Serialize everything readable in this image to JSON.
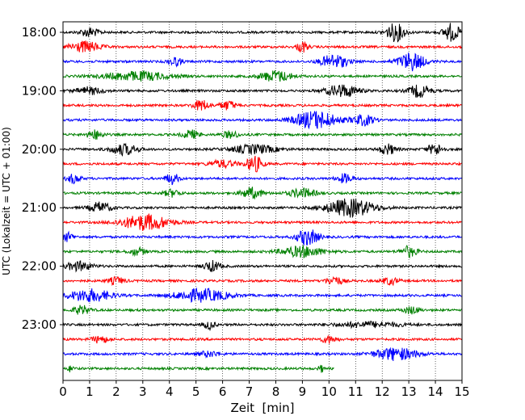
{
  "chart_data": {
    "type": "line",
    "title": "",
    "xlabel": "Zeit  [min]",
    "ylabel": "UTC (Lokalzeit = UTC + 01:00)",
    "xlim": [
      0,
      15
    ],
    "x_ticks": [
      "0",
      "1",
      "2",
      "3",
      "4",
      "5",
      "6",
      "7",
      "8",
      "9",
      "10",
      "11",
      "12",
      "13",
      "14",
      "15"
    ],
    "y_ticks": [
      {
        "label": "18:00",
        "row": 0
      },
      {
        "label": "19:00",
        "row": 4
      },
      {
        "label": "20:00",
        "row": 8
      },
      {
        "label": "21:00",
        "row": 12
      },
      {
        "label": "22:00",
        "row": 16
      },
      {
        "label": "23:00",
        "row": 20
      }
    ],
    "grid": "vertical-dotted",
    "row_colors": [
      "#000000",
      "#ff0000",
      "#0000ff",
      "#008000"
    ],
    "rows": [
      {
        "start": "18:00",
        "end_min": 15,
        "bursts": [
          [
            1.0,
            0.5,
            0.35
          ],
          [
            12.5,
            1.0,
            0.35
          ],
          [
            14.6,
            1.0,
            0.3
          ]
        ]
      },
      {
        "start": "18:15",
        "end_min": 15,
        "bursts": [
          [
            0.8,
            0.6,
            0.6
          ],
          [
            9.0,
            0.6,
            0.2
          ]
        ]
      },
      {
        "start": "18:30",
        "end_min": 15,
        "bursts": [
          [
            4.2,
            0.5,
            0.25
          ],
          [
            10.2,
            0.8,
            0.5
          ],
          [
            13.1,
            1.0,
            0.5
          ]
        ]
      },
      {
        "start": "18:45",
        "end_min": 15,
        "bursts": [
          [
            2.8,
            0.5,
            1.2
          ],
          [
            8.0,
            0.6,
            0.6
          ]
        ]
      },
      {
        "start": "19:00",
        "end_min": 15,
        "bursts": [
          [
            1.0,
            0.4,
            0.5
          ],
          [
            10.5,
            0.7,
            0.6
          ],
          [
            13.4,
            0.7,
            0.4
          ]
        ]
      },
      {
        "start": "19:15",
        "end_min": 15,
        "bursts": [
          [
            5.2,
            0.6,
            0.3
          ],
          [
            6.2,
            0.5,
            0.3
          ]
        ]
      },
      {
        "start": "19:30",
        "end_min": 15,
        "bursts": [
          [
            9.5,
            1.0,
            0.8
          ],
          [
            11.3,
            0.6,
            0.4
          ]
        ]
      },
      {
        "start": "19:45",
        "end_min": 15,
        "bursts": [
          [
            1.2,
            0.5,
            0.3
          ],
          [
            4.8,
            0.5,
            0.3
          ],
          [
            6.3,
            0.4,
            0.3
          ]
        ]
      },
      {
        "start": "20:00",
        "end_min": 15,
        "bursts": [
          [
            2.3,
            0.6,
            0.5
          ],
          [
            7.2,
            0.5,
            0.8
          ],
          [
            12.2,
            0.6,
            0.3
          ],
          [
            14.0,
            0.6,
            0.3
          ]
        ]
      },
      {
        "start": "20:15",
        "end_min": 15,
        "bursts": [
          [
            6.0,
            0.4,
            0.5
          ],
          [
            7.2,
            0.9,
            0.3
          ]
        ]
      },
      {
        "start": "20:30",
        "end_min": 15,
        "bursts": [
          [
            0.4,
            0.5,
            0.25
          ],
          [
            4.1,
            0.6,
            0.25
          ],
          [
            10.6,
            0.5,
            0.3
          ]
        ]
      },
      {
        "start": "20:45",
        "end_min": 15,
        "bursts": [
          [
            4.1,
            0.4,
            0.3
          ],
          [
            7.1,
            0.6,
            0.4
          ],
          [
            9.0,
            0.5,
            0.5
          ]
        ]
      },
      {
        "start": "21:00",
        "end_min": 15,
        "bursts": [
          [
            1.4,
            0.6,
            0.4
          ],
          [
            10.8,
            1.0,
            0.9
          ]
        ]
      },
      {
        "start": "21:15",
        "end_min": 15,
        "bursts": [
          [
            3.1,
            0.9,
            0.9
          ]
        ]
      },
      {
        "start": "21:30",
        "end_min": 15,
        "bursts": [
          [
            0.2,
            0.5,
            0.2
          ],
          [
            9.2,
            0.9,
            0.4
          ]
        ]
      },
      {
        "start": "21:45",
        "end_min": 15,
        "bursts": [
          [
            2.8,
            0.4,
            0.3
          ],
          [
            9.0,
            0.6,
            0.8
          ],
          [
            13.0,
            0.6,
            0.3
          ]
        ]
      },
      {
        "start": "22:00",
        "end_min": 15,
        "bursts": [
          [
            0.6,
            0.5,
            0.5
          ],
          [
            5.6,
            0.6,
            0.3
          ]
        ]
      },
      {
        "start": "22:15",
        "end_min": 15,
        "bursts": [
          [
            2.0,
            0.4,
            0.3
          ],
          [
            10.2,
            0.5,
            0.3
          ],
          [
            12.3,
            0.4,
            0.3
          ]
        ]
      },
      {
        "start": "22:30",
        "end_min": 15,
        "bursts": [
          [
            1.0,
            0.7,
            0.8
          ],
          [
            5.2,
            0.7,
            1.0
          ]
        ]
      },
      {
        "start": "22:45",
        "end_min": 15,
        "bursts": [
          [
            0.7,
            0.5,
            0.3
          ],
          [
            13.1,
            0.4,
            0.3
          ]
        ]
      },
      {
        "start": "23:00",
        "end_min": 15,
        "bursts": [
          [
            5.5,
            0.5,
            0.2
          ],
          [
            11.5,
            0.3,
            1.2
          ]
        ]
      },
      {
        "start": "23:15",
        "end_min": 15,
        "bursts": [
          [
            1.4,
            0.4,
            0.3
          ],
          [
            10.0,
            0.4,
            0.3
          ]
        ]
      },
      {
        "start": "23:30",
        "end_min": 15,
        "bursts": [
          [
            5.5,
            0.3,
            0.4
          ],
          [
            12.5,
            0.7,
            0.8
          ]
        ]
      },
      {
        "start": "23:45",
        "end_min": 10.2,
        "bursts": [
          [
            0.3,
            0.4,
            0.1
          ],
          [
            9.7,
            0.4,
            0.1
          ]
        ]
      }
    ]
  }
}
